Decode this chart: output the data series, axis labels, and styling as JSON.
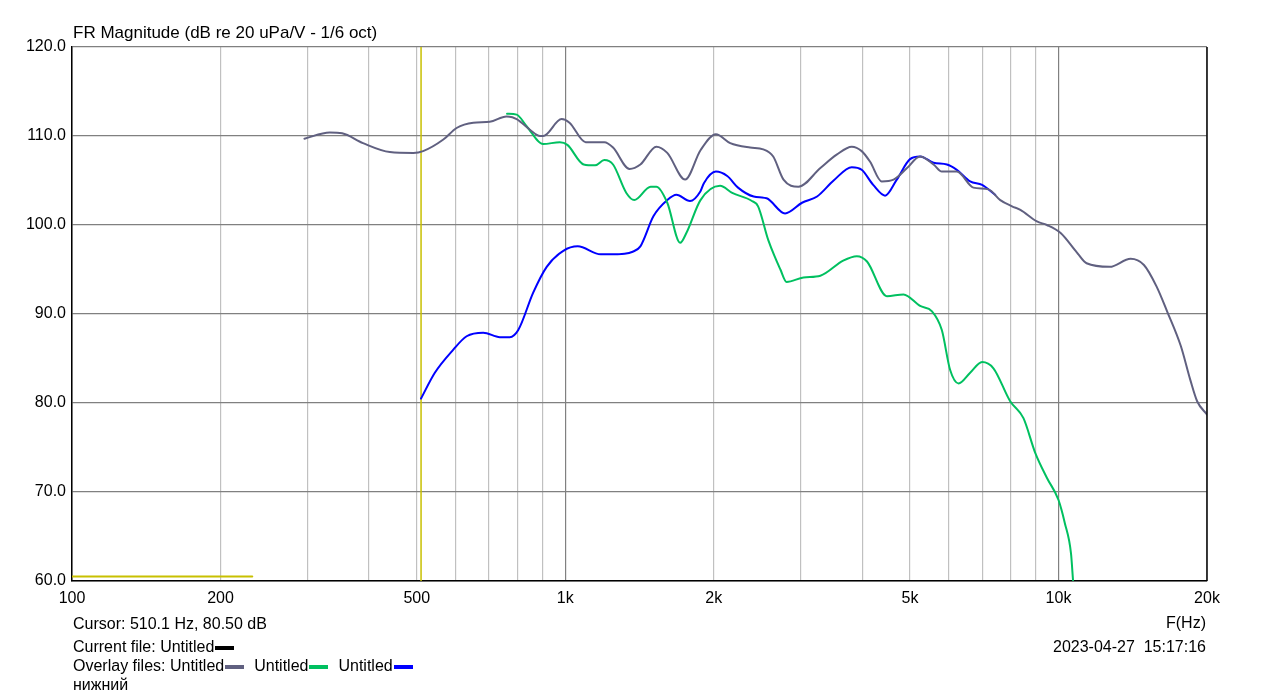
{
  "chart_data": {
    "type": "line",
    "title": "FR Magnitude (dB re 20 uPa/V - 1/6 oct)",
    "xlabel": "F(Hz)",
    "log": "x",
    "grid": true,
    "legend": "bottom",
    "legend_title": "Overlay files:",
    "xlim": [
      100,
      20000
    ],
    "ylim": [
      60,
      120
    ],
    "xticks": [
      100,
      200,
      {
        "value": 300,
        "label": null
      },
      {
        "value": 400,
        "label": null
      },
      500,
      {
        "value": 600,
        "label": null
      },
      {
        "value": 700,
        "label": null
      },
      {
        "value": 800,
        "label": null
      },
      {
        "value": 900,
        "label": null
      },
      {
        "value": 1000,
        "label": "1k"
      },
      {
        "value": 2000,
        "label": "2k"
      },
      {
        "value": 3000,
        "label": null
      },
      {
        "value": 4000,
        "label": null
      },
      {
        "value": 5000,
        "label": "5k"
      },
      {
        "value": 6000,
        "label": null
      },
      {
        "value": 7000,
        "label": null
      },
      {
        "value": 8000,
        "label": null
      },
      {
        "value": 9000,
        "label": null
      },
      {
        "value": 10000,
        "label": "10k"
      },
      {
        "value": 20000,
        "label": "20k"
      }
    ],
    "yticks": [
      {
        "value": 60,
        "label": "60.0"
      },
      {
        "value": 70,
        "label": "70.0"
      },
      {
        "value": 80,
        "label": "80.0"
      },
      {
        "value": 90,
        "label": "90.0"
      },
      {
        "value": 100,
        "label": "100.0"
      },
      {
        "value": 110,
        "label": "110.0"
      },
      {
        "value": 120,
        "label": "120.0"
      }
    ],
    "ref_lines": [
      {
        "axis": "x",
        "value": 510.1,
        "color": "#c8c000"
      }
    ],
    "series": [
      {
        "name": "Untitled",
        "color": "#606080",
        "x": [
          296,
          333,
          353,
          389,
          441,
          492,
          515,
          566,
          602,
          651,
          703,
          760,
          797,
          848,
          889,
          902,
          983,
          1020,
          1100,
          1200,
          1250,
          1350,
          1420,
          1530,
          1610,
          1750,
          1880,
          2020,
          2160,
          2370,
          2520,
          2640,
          2770,
          2970,
          3290,
          3550,
          3810,
          3990,
          4150,
          4380,
          4630,
          4930,
          5240,
          5580,
          5800,
          6220,
          6720,
          7210,
          7620,
          8050,
          8370,
          9040,
          9470,
          10100,
          10900,
          11400,
          12700,
          14000,
          14900,
          15800,
          16600,
          17700,
          18500,
          19100,
          20000
        ],
        "values": [
          109.7,
          110.4,
          110.3,
          109.2,
          108.2,
          108.1,
          108.3,
          109.6,
          110.9,
          111.5,
          111.6,
          112.2,
          111.9,
          110.7,
          110.0,
          110.0,
          111.9,
          111.5,
          109.3,
          109.3,
          108.7,
          106.3,
          106.8,
          108.8,
          108.1,
          105.1,
          108.4,
          110.2,
          109.2,
          108.7,
          108.5,
          107.7,
          105.1,
          104.3,
          106.4,
          107.9,
          108.8,
          108.3,
          107.1,
          104.9,
          105.1,
          106.4,
          107.7,
          106.8,
          106.0,
          106.0,
          104.2,
          104.0,
          102.8,
          102.1,
          101.7,
          100.4,
          100.0,
          99.1,
          96.9,
          95.7,
          95.3,
          96.2,
          95.5,
          93.1,
          90.3,
          86.4,
          82.6,
          80.2,
          78.7
        ]
      },
      {
        "name": "Untitled",
        "color": "#00c060",
        "x": [
          762,
          797,
          835,
          902,
          975,
          1010,
          1090,
          1150,
          1200,
          1250,
          1330,
          1380,
          1490,
          1530,
          1610,
          1710,
          1760,
          1880,
          2060,
          2180,
          2390,
          2460,
          2580,
          2730,
          2810,
          3040,
          3290,
          3660,
          3900,
          4090,
          4490,
          4850,
          5240,
          5540,
          5800,
          6030,
          6270,
          6620,
          7000,
          7380,
          7980,
          8490,
          8970,
          9470,
          10000,
          10300,
          10600,
          10700
        ],
        "values": [
          112.5,
          112.4,
          111.1,
          109.1,
          109.3,
          109.0,
          106.8,
          106.7,
          107.3,
          106.8,
          103.6,
          102.8,
          104.3,
          104.3,
          102.5,
          98.0,
          99.1,
          102.8,
          104.4,
          103.6,
          102.7,
          102.1,
          98.3,
          95.0,
          93.6,
          94.1,
          94.3,
          96.0,
          96.5,
          95.9,
          92.0,
          92.2,
          90.9,
          90.3,
          88.2,
          83.7,
          82.2,
          83.4,
          84.6,
          83.9,
          80.2,
          78.3,
          74.4,
          71.6,
          69.1,
          66.5,
          63.1,
          60.1
        ]
      },
      {
        "name": "Untitled",
        "color": "#0000ff",
        "x": [
          510,
          544,
          593,
          631,
          682,
          737,
          772,
          803,
          861,
          917,
          991,
          1060,
          1180,
          1250,
          1370,
          1420,
          1510,
          1610,
          1680,
          1790,
          1880,
          1910,
          2020,
          2130,
          2240,
          2410,
          2560,
          2790,
          3020,
          3240,
          3500,
          3810,
          3990,
          4210,
          4450,
          4700,
          5000,
          5240,
          5580,
          5940,
          6220,
          6620,
          7000,
          7440
        ],
        "values": [
          80.5,
          83.4,
          86.0,
          87.5,
          87.9,
          87.4,
          87.4,
          88.2,
          92.4,
          95.3,
          97.1,
          97.6,
          96.7,
          96.7,
          97.0,
          97.6,
          101.0,
          102.8,
          103.4,
          102.7,
          103.8,
          104.7,
          106.0,
          105.5,
          104.2,
          103.2,
          103.0,
          101.3,
          102.5,
          103.2,
          105.0,
          106.5,
          106.2,
          104.5,
          103.3,
          105.1,
          107.4,
          107.7,
          107.0,
          106.8,
          106.2,
          104.9,
          104.5,
          103.4
        ]
      },
      {
        "color": "#c8c000",
        "x": [
          100,
          232
        ],
        "values": [
          60.5,
          60.5
        ]
      }
    ],
    "annotations": [
      "Cursor: 510.1 Hz, 80.50 dB",
      "Current file: Untitled",
      "нижний",
      "2023-04-27  15:17:16"
    ]
  }
}
